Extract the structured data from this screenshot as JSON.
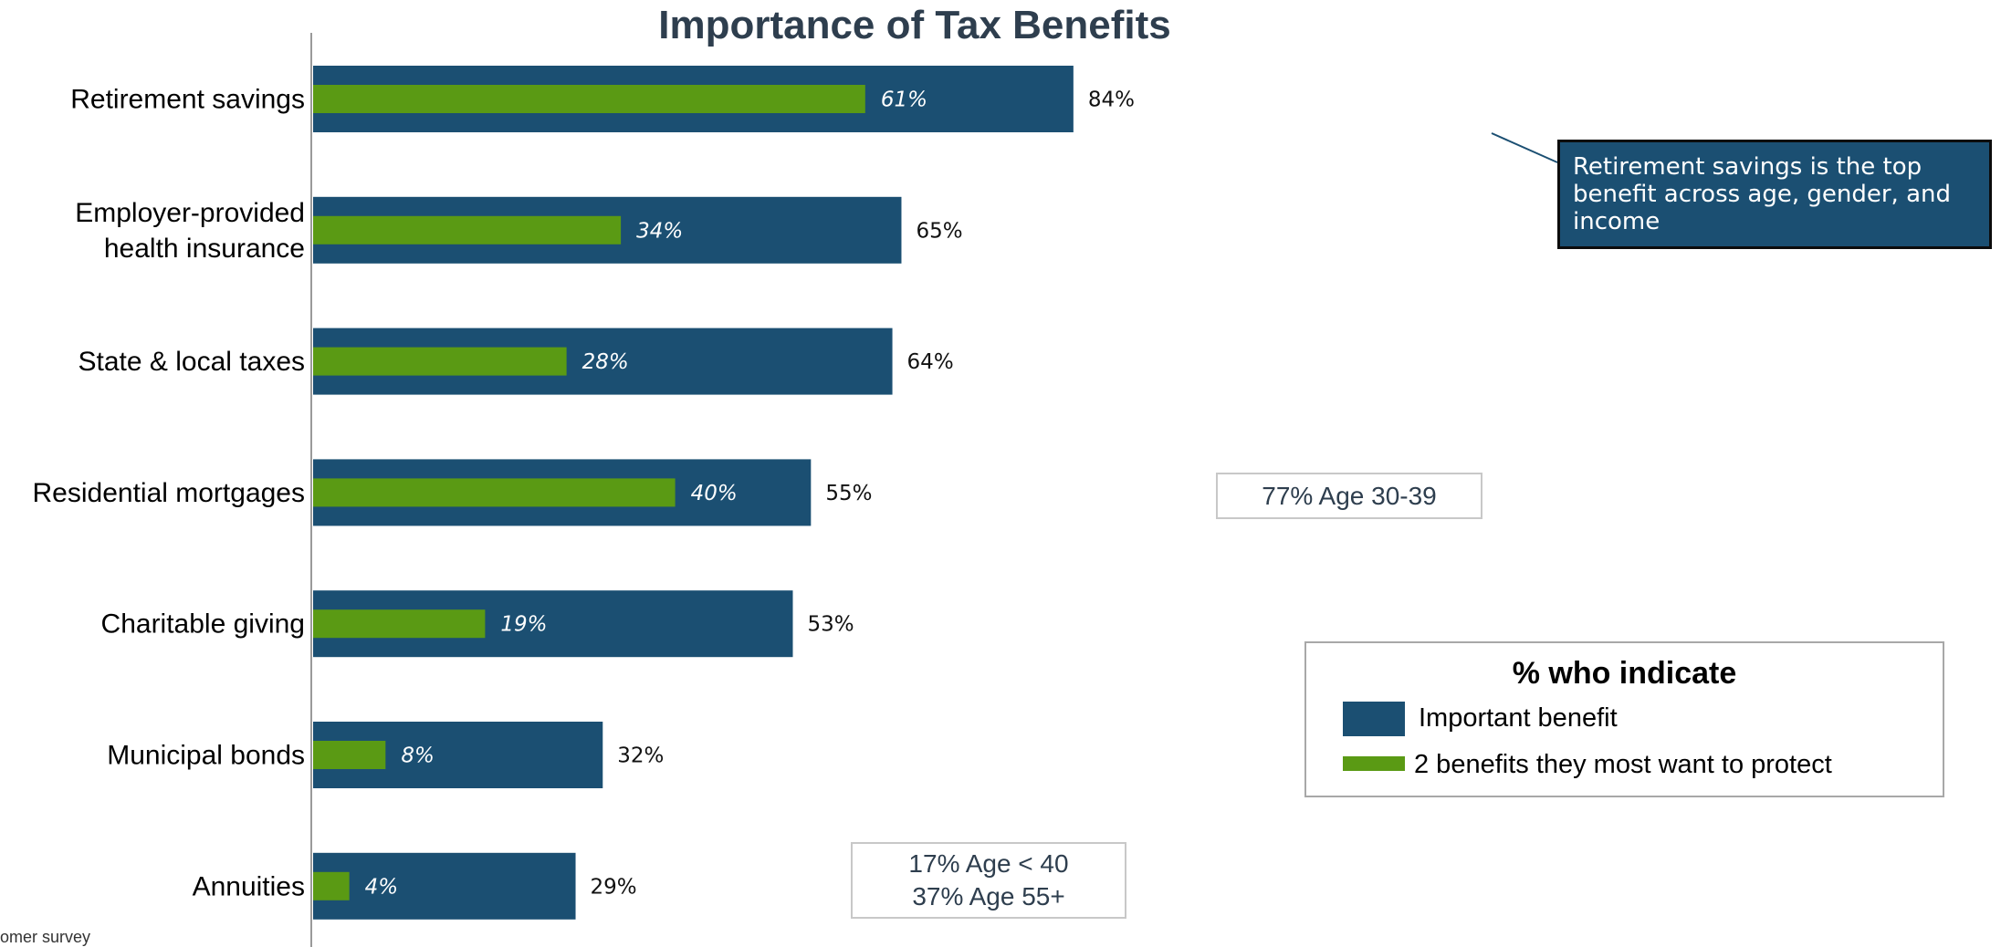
{
  "chart_data": {
    "type": "bar",
    "orientation": "horizontal",
    "title": "Importance of Tax Benefits",
    "categories": [
      [
        "Retirement savings"
      ],
      [
        "Employer-provided",
        "health insurance"
      ],
      [
        "State & local taxes"
      ],
      [
        "Residential mortgages"
      ],
      [
        "Charitable giving"
      ],
      [
        "Municipal bonds"
      ],
      [
        "Annuities"
      ]
    ],
    "series": [
      {
        "name": "Important benefit",
        "color": "#1b4f72",
        "values": [
          84,
          65,
          64,
          55,
          53,
          32,
          29
        ],
        "labels": [
          "84%",
          "65%",
          "64%",
          "55%",
          "53%",
          "32%",
          "29%"
        ]
      },
      {
        "name": "2 benefits they most want to protect",
        "color": "#5a9a14",
        "values": [
          61,
          34,
          28,
          40,
          19,
          8,
          4
        ],
        "labels": [
          "61%",
          "34%",
          "28%",
          "40%",
          "19%",
          "8%",
          "4%"
        ]
      }
    ],
    "xlim": [
      0,
      100
    ],
    "grid": false,
    "legend": {
      "title": "% who indicate",
      "placement": "bottom-right"
    }
  },
  "callout": "Retirement savings  is  the top benefit across  age, gender, and income",
  "annotations": {
    "mortgages_note": "77%  Age 30-39",
    "annuities_note": [
      "17% Age < 40",
      "37% Age 55+"
    ]
  },
  "footnote": "omer survey"
}
